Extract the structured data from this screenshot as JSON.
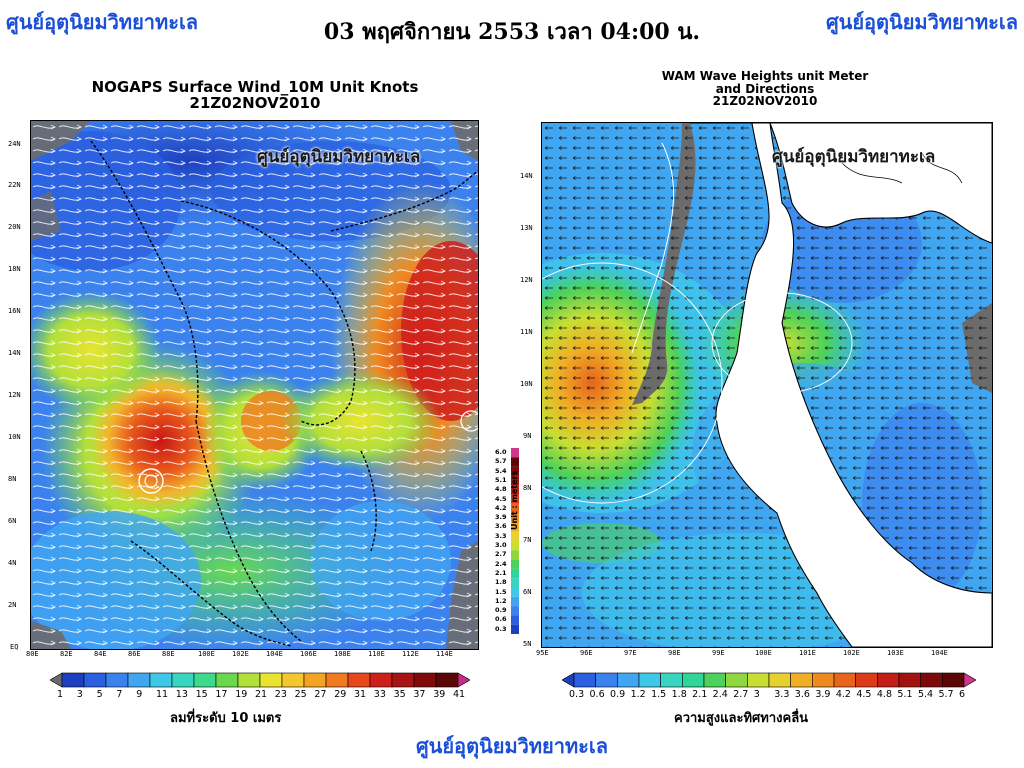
{
  "header": {
    "org_left": "ศูนย์อุตุนิยมวิทยาทะเล",
    "org_right": "ศูนย์อุตุนิยมวิทยาทะเล",
    "datetime": "03 พฤศจิกายน 2553 เวลา 04:00 น."
  },
  "left_map": {
    "title_line1": "NOGAPS Surface Wind_10M Unit Knots",
    "title_line2": "21Z02NOV2010",
    "watermark": "ศูนย์อุตุนิยมวิทยาทะเล",
    "y_ticks": [
      "24N",
      "22N",
      "20N",
      "18N",
      "16N",
      "14N",
      "12N",
      "10N",
      "8N",
      "6N",
      "4N",
      "2N",
      "EQ"
    ],
    "x_ticks": [
      "80E",
      "82E",
      "84E",
      "86E",
      "88E",
      "100E",
      "102E",
      "104E",
      "106E",
      "108E",
      "110E",
      "112E",
      "114E"
    ],
    "colorbar": {
      "labels": [
        "1",
        "3",
        "5",
        "7",
        "9",
        "11",
        "13",
        "15",
        "17",
        "19",
        "21",
        "23",
        "25",
        "27",
        "29",
        "31",
        "33",
        "35",
        "37",
        "39",
        "41"
      ],
      "colors": [
        "#6b6b6b",
        "#1e3fbf",
        "#2a5fe0",
        "#3c82ee",
        "#40a6f2",
        "#3fc8e8",
        "#38d6c0",
        "#3dd98c",
        "#6ad84f",
        "#b2df3a",
        "#e8e431",
        "#f5c72f",
        "#f5a323",
        "#f07a1f",
        "#e8461c",
        "#cf1f1d",
        "#a81313",
        "#7f0b0b",
        "#5a0707",
        "#c82b86"
      ],
      "caption": "ลมที่ระดับ 10 เมตร"
    }
  },
  "right_map": {
    "title_line1": "WAM Wave Heights unit Meter",
    "title_line2": "and Directions",
    "title_line3": "21Z02NOV2010",
    "watermark": "ศูนย์อุตุนิยมวิทยาทะเล",
    "y_ticks": [
      "14N",
      "13N",
      "12N",
      "11N",
      "10N",
      "9N",
      "8N",
      "7N",
      "6N",
      "5N"
    ],
    "x_ticks": [
      "95E",
      "96E",
      "97E",
      "98E",
      "99E",
      "100E",
      "101E",
      "102E",
      "103E",
      "104E"
    ],
    "colorbar": {
      "labels": [
        "0.3",
        "0.6",
        "0.9",
        "1.2",
        "1.5",
        "1.8",
        "2.1",
        "2.4",
        "2.7",
        "3",
        "3.3",
        "3.6",
        "3.9",
        "4.2",
        "4.5",
        "4.8",
        "5.1",
        "5.4",
        "5.7",
        "6"
      ],
      "colors": [
        "#1e3fbf",
        "#2a5fe0",
        "#3c82ee",
        "#40a6f2",
        "#3fc8e8",
        "#38d6c0",
        "#2fd59a",
        "#4cd25a",
        "#8fd63f",
        "#c9de33",
        "#e8d02f",
        "#f0ae26",
        "#ee8a20",
        "#e8641c",
        "#dc3a19",
        "#c41d16",
        "#a11211",
        "#7d0a0a",
        "#5d0606",
        "#d0368c"
      ],
      "caption": "ความสูงและทิศทางคลื่น"
    },
    "side_scale": {
      "labels": [
        "6.0",
        "5.7",
        "5.4",
        "5.1",
        "4.8",
        "4.5",
        "4.2",
        "3.9",
        "3.6",
        "3.3",
        "3.0",
        "2.7",
        "2.4",
        "2.1",
        "1.8",
        "1.5",
        "1.2",
        "0.9",
        "0.6",
        "0.3"
      ],
      "unit": "Unit : meters"
    }
  },
  "footer": {
    "org": "ศูนย์อุตุนิยมวิทยาทะเล"
  }
}
